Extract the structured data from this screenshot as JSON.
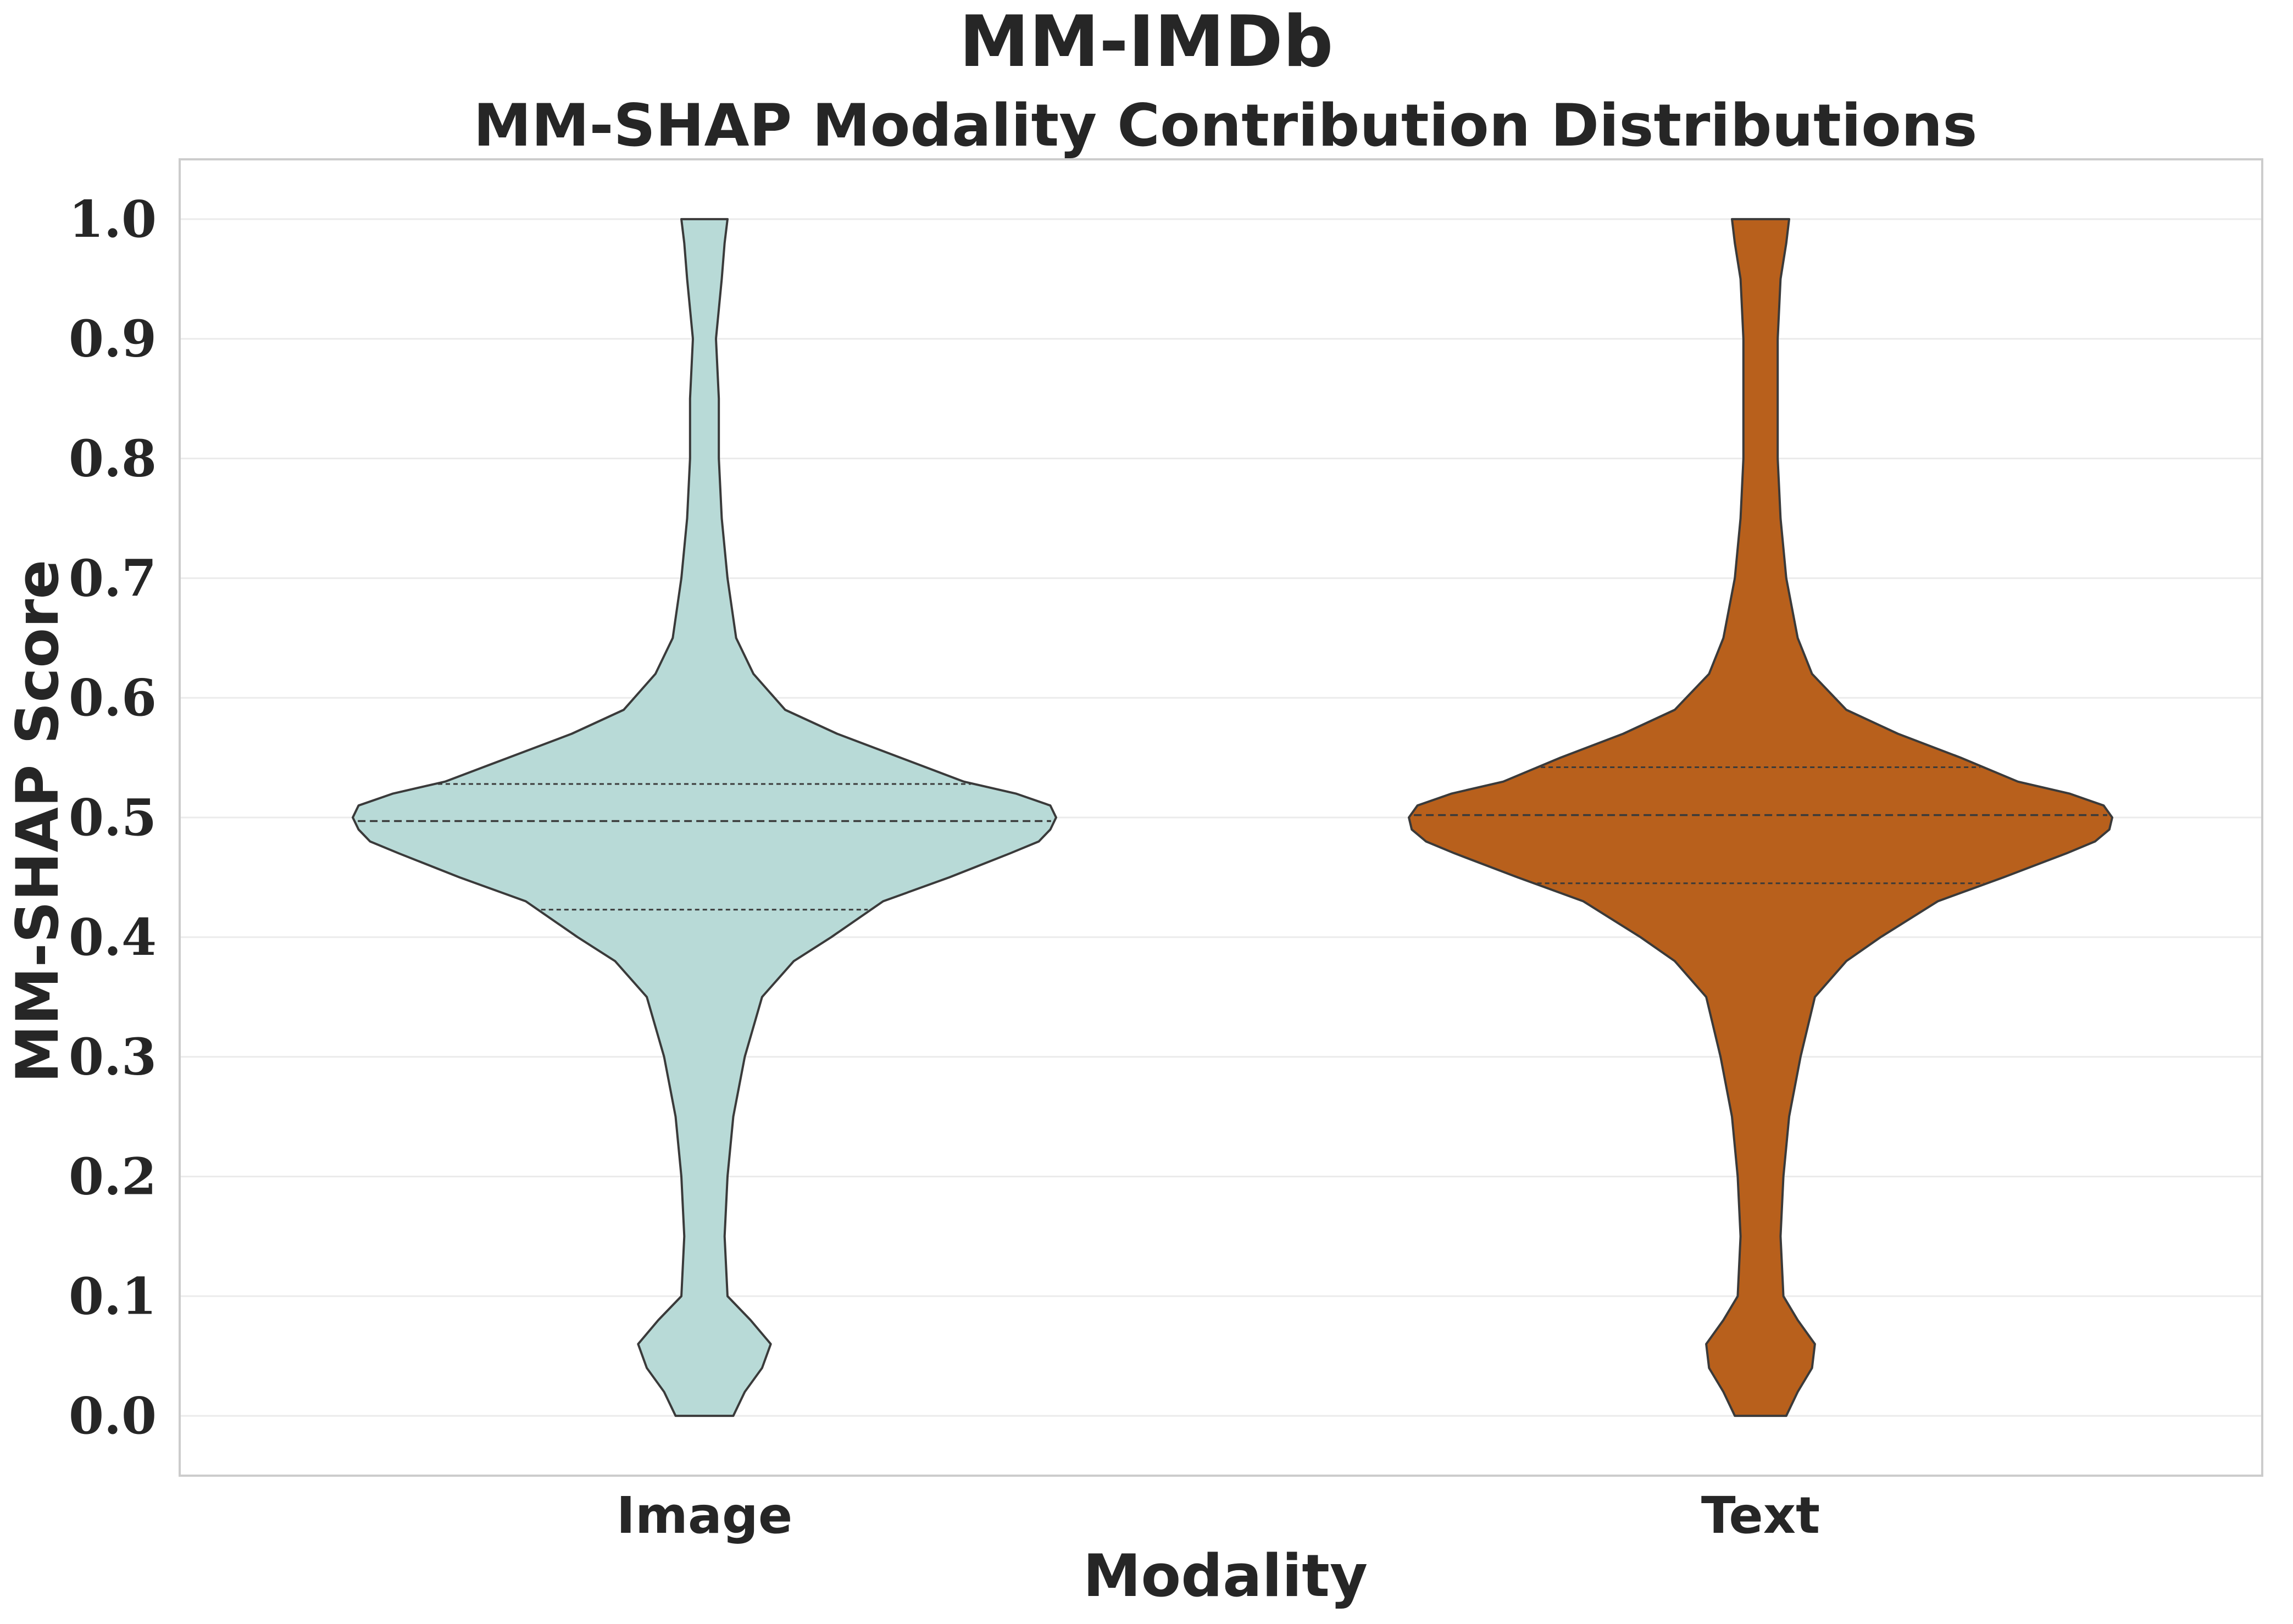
{
  "chart_data": {
    "type": "violin",
    "title": "MM-IMDb",
    "subtitle": "MM-SHAP Modality Contribution Distributions",
    "xlabel": "Modality",
    "ylabel": "MM-SHAP Score",
    "ylim": [
      -0.05,
      1.05
    ],
    "yticks": [
      "0.0",
      "0.1",
      "0.2",
      "0.3",
      "0.4",
      "0.5",
      "0.6",
      "0.7",
      "0.8",
      "0.9",
      "1.0"
    ],
    "grid": true,
    "categories": [
      "Image",
      "Text"
    ],
    "series": [
      {
        "name": "Image",
        "color": "#b8dad7",
        "quartiles": {
          "q1": 0.423,
          "median": 0.497,
          "q3": 0.528
        },
        "density": [
          [
            0.0,
            0.1
          ],
          [
            0.02,
            0.14
          ],
          [
            0.04,
            0.2
          ],
          [
            0.06,
            0.23
          ],
          [
            0.08,
            0.16
          ],
          [
            0.1,
            0.08
          ],
          [
            0.15,
            0.07
          ],
          [
            0.2,
            0.08
          ],
          [
            0.25,
            0.1
          ],
          [
            0.3,
            0.14
          ],
          [
            0.35,
            0.2
          ],
          [
            0.38,
            0.31
          ],
          [
            0.4,
            0.44
          ],
          [
            0.43,
            0.62
          ],
          [
            0.45,
            0.85
          ],
          [
            0.47,
            1.06
          ],
          [
            0.48,
            1.16
          ],
          [
            0.49,
            1.2
          ],
          [
            0.5,
            1.22
          ],
          [
            0.51,
            1.2
          ],
          [
            0.52,
            1.08
          ],
          [
            0.53,
            0.9
          ],
          [
            0.55,
            0.68
          ],
          [
            0.57,
            0.46
          ],
          [
            0.59,
            0.28
          ],
          [
            0.62,
            0.17
          ],
          [
            0.65,
            0.11
          ],
          [
            0.7,
            0.08
          ],
          [
            0.75,
            0.06
          ],
          [
            0.8,
            0.05
          ],
          [
            0.85,
            0.05
          ],
          [
            0.9,
            0.04
          ],
          [
            0.95,
            0.06
          ],
          [
            0.98,
            0.07
          ],
          [
            1.0,
            0.08
          ]
        ]
      },
      {
        "name": "Text",
        "color": "#b8601c",
        "quartiles": {
          "q1": 0.445,
          "median": 0.502,
          "q3": 0.542
        },
        "density": [
          [
            0.0,
            0.09
          ],
          [
            0.02,
            0.13
          ],
          [
            0.04,
            0.18
          ],
          [
            0.06,
            0.19
          ],
          [
            0.08,
            0.13
          ],
          [
            0.1,
            0.08
          ],
          [
            0.15,
            0.07
          ],
          [
            0.2,
            0.08
          ],
          [
            0.25,
            0.1
          ],
          [
            0.3,
            0.14
          ],
          [
            0.35,
            0.19
          ],
          [
            0.38,
            0.3
          ],
          [
            0.4,
            0.42
          ],
          [
            0.43,
            0.62
          ],
          [
            0.45,
            0.85
          ],
          [
            0.47,
            1.07
          ],
          [
            0.48,
            1.17
          ],
          [
            0.49,
            1.22
          ],
          [
            0.5,
            1.23
          ],
          [
            0.51,
            1.2
          ],
          [
            0.52,
            1.08
          ],
          [
            0.53,
            0.9
          ],
          [
            0.55,
            0.7
          ],
          [
            0.57,
            0.48
          ],
          [
            0.59,
            0.3
          ],
          [
            0.62,
            0.18
          ],
          [
            0.65,
            0.13
          ],
          [
            0.7,
            0.09
          ],
          [
            0.75,
            0.07
          ],
          [
            0.8,
            0.06
          ],
          [
            0.85,
            0.06
          ],
          [
            0.9,
            0.06
          ],
          [
            0.95,
            0.07
          ],
          [
            0.98,
            0.09
          ],
          [
            1.0,
            0.1
          ]
        ]
      }
    ]
  }
}
